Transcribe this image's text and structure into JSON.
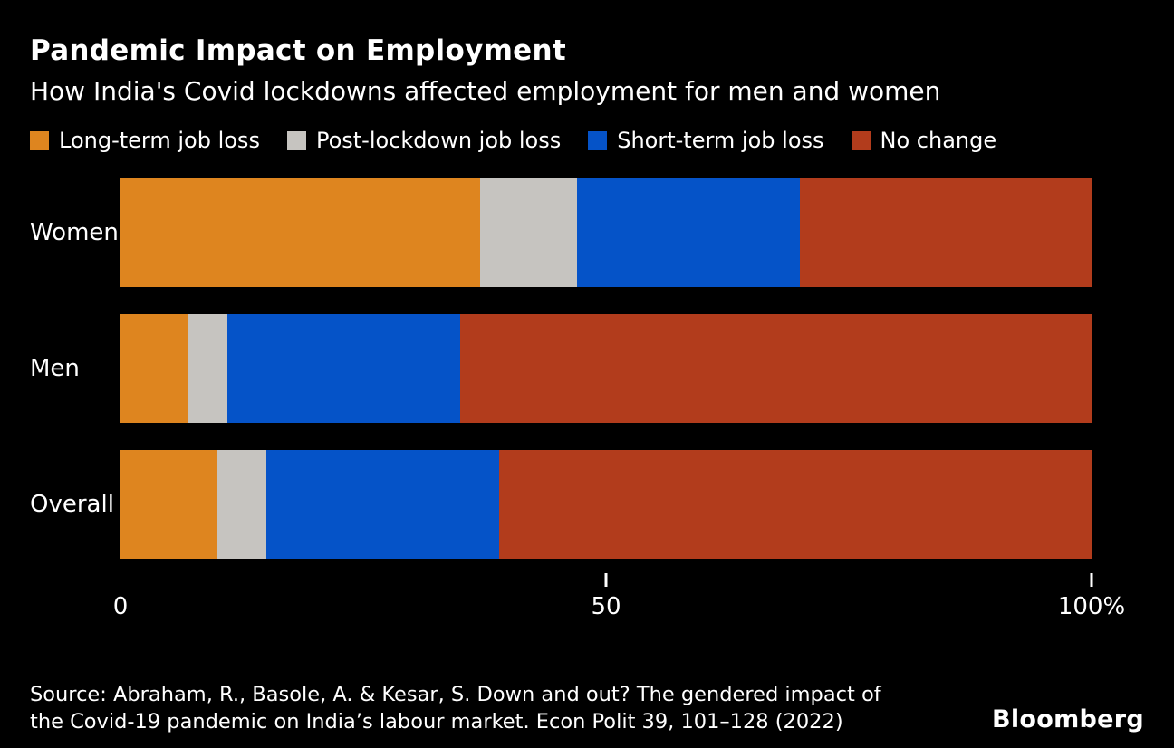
{
  "title": "Pandemic Impact on Employment",
  "subtitle": "How India's Covid lockdowns affected employment for men and women",
  "colors": {
    "background": "#000000",
    "text": "#FFFFFF",
    "long_term": "#DE851F",
    "post_lockdown": "#C6C4C0",
    "short_term": "#0553C8",
    "no_change": "#B23C1C"
  },
  "legend": [
    {
      "label": "Long-term job loss",
      "color": "#DE851F"
    },
    {
      "label": "Post-lockdown job loss",
      "color": "#C6C4C0"
    },
    {
      "label": "Short-term job loss",
      "color": "#0553C8"
    },
    {
      "label": "No change",
      "color": "#B23C1C"
    }
  ],
  "chart_data": {
    "type": "bar",
    "orientation": "horizontal",
    "stacked": true,
    "unit": "%",
    "xlim": [
      0,
      100
    ],
    "categories": [
      "Women",
      "Men",
      "Overall"
    ],
    "series": [
      {
        "name": "Long-term job loss",
        "color": "#DE851F",
        "values": [
          37,
          7,
          10
        ]
      },
      {
        "name": "Post-lockdown job loss",
        "color": "#C6C4C0",
        "values": [
          10,
          4,
          5
        ]
      },
      {
        "name": "Short-term job loss",
        "color": "#0553C8",
        "values": [
          23,
          24,
          24
        ]
      },
      {
        "name": "No change",
        "color": "#B23C1C",
        "values": [
          30,
          65,
          61
        ]
      }
    ],
    "x_ticks": [
      {
        "value": 0,
        "label": "0",
        "show_mark": false
      },
      {
        "value": 50,
        "label": "50",
        "show_mark": true
      },
      {
        "value": 100,
        "label": "100%",
        "show_mark": true
      }
    ],
    "legend_position": "top",
    "grid": false
  },
  "source": {
    "line1": "Source: Abraham, R., Basole, A. & Kesar, S. Down and out? The gendered impact of",
    "line2": "the Covid-19 pandemic on India’s labour market. Econ Polit 39, 101–128 (2022)"
  },
  "logo": "Bloomberg"
}
